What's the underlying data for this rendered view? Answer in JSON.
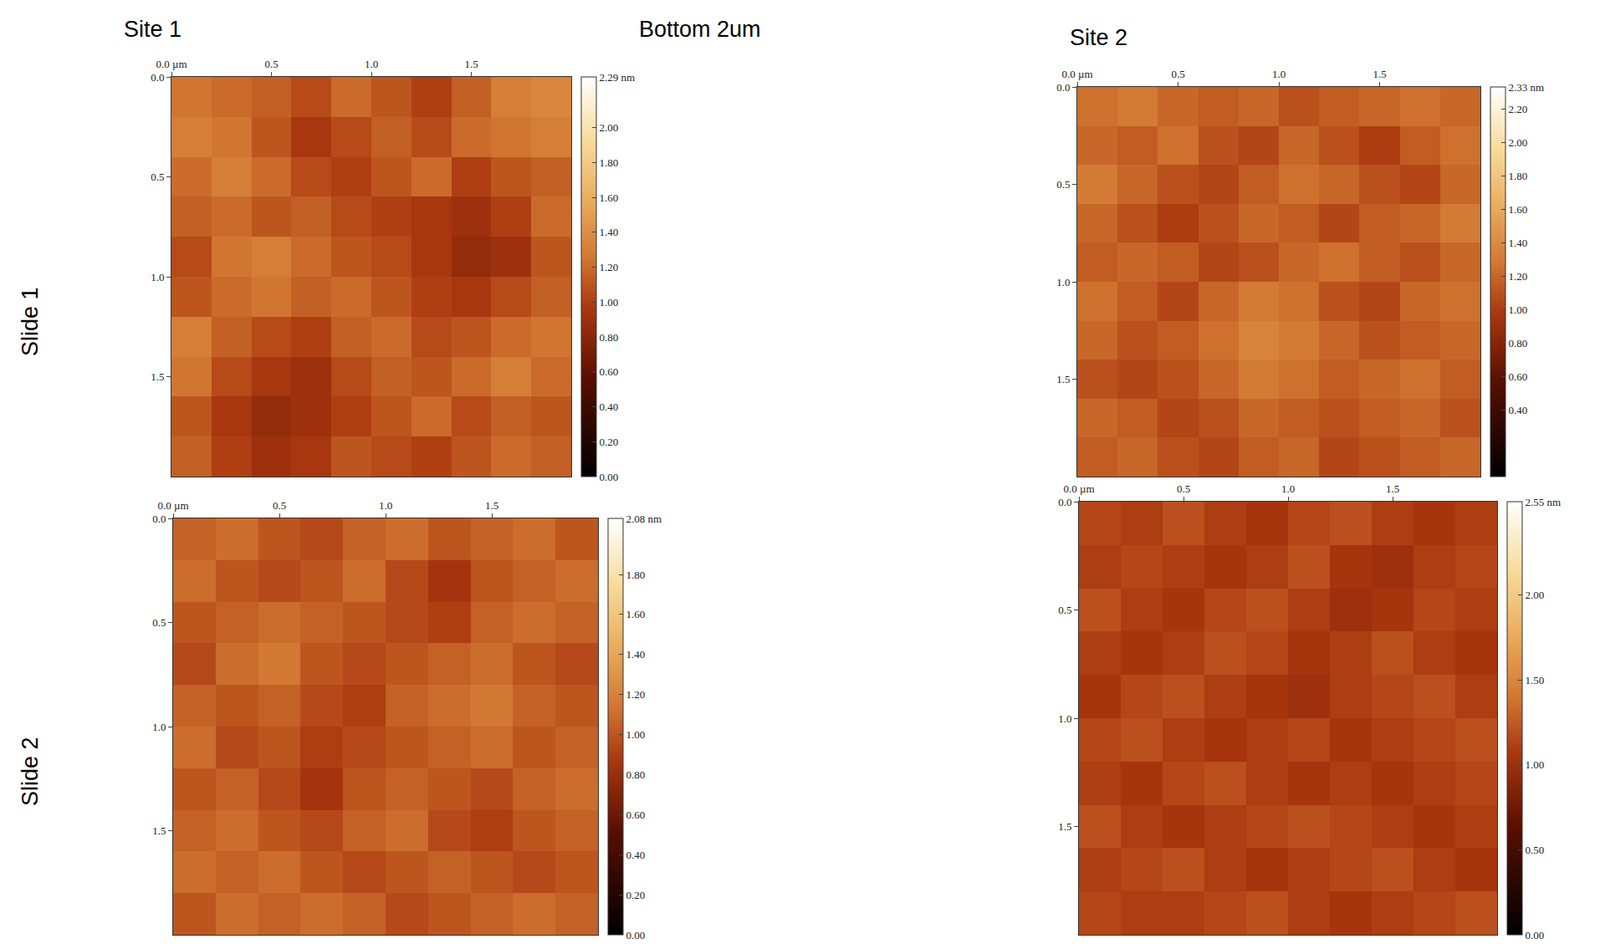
{
  "header": {
    "column_titles": [
      "Site 1",
      "Site 2"
    ],
    "row_titles": [
      "Slide 1",
      "Slide 2"
    ],
    "subtitle": "Bottom 2um"
  },
  "chart_data": [
    {
      "type": "heatmap",
      "row": "Slide 1",
      "column": "Site 1",
      "x": [
        0.1,
        0.3,
        0.5,
        0.7,
        0.9,
        1.1,
        1.3,
        1.5,
        1.7,
        1.9
      ],
      "y": [
        0.1,
        0.3,
        0.5,
        0.7,
        0.9,
        1.1,
        1.3,
        1.5,
        1.7,
        1.9
      ],
      "z": [
        [
          1.25,
          1.2,
          1.15,
          1.05,
          1.2,
          1.1,
          1.0,
          1.15,
          1.3,
          1.35
        ],
        [
          1.3,
          1.25,
          1.1,
          0.95,
          1.05,
          1.15,
          1.05,
          1.2,
          1.25,
          1.3
        ],
        [
          1.2,
          1.3,
          1.2,
          1.05,
          1.0,
          1.1,
          1.2,
          1.0,
          1.1,
          1.15
        ],
        [
          1.15,
          1.2,
          1.1,
          1.15,
          1.05,
          1.0,
          0.95,
          0.9,
          1.0,
          1.2
        ],
        [
          1.05,
          1.25,
          1.3,
          1.2,
          1.1,
          1.05,
          0.95,
          0.85,
          0.9,
          1.1
        ],
        [
          1.1,
          1.2,
          1.25,
          1.15,
          1.2,
          1.1,
          1.0,
          0.95,
          1.05,
          1.15
        ],
        [
          1.3,
          1.15,
          1.05,
          1.0,
          1.15,
          1.2,
          1.05,
          1.1,
          1.2,
          1.25
        ],
        [
          1.25,
          1.05,
          0.95,
          0.9,
          1.05,
          1.15,
          1.1,
          1.2,
          1.3,
          1.2
        ],
        [
          1.1,
          0.95,
          0.85,
          0.9,
          1.0,
          1.1,
          1.2,
          1.05,
          1.15,
          1.1
        ],
        [
          1.15,
          1.0,
          0.9,
          0.95,
          1.1,
          1.05,
          1.0,
          1.1,
          1.2,
          1.15
        ]
      ],
      "xlim": [
        0,
        2
      ],
      "ylim": [
        2,
        0
      ],
      "xticks": [
        {
          "value": 0,
          "label": "0.0 µm"
        },
        0.5,
        {
          "value": 1,
          "label": "1.0"
        },
        1.5
      ],
      "yticks": [
        {
          "value": 0,
          "label": "0.0"
        },
        0.5,
        {
          "value": 1,
          "label": "1.0"
        },
        1.5
      ],
      "zlim": [
        0,
        2.29
      ],
      "zticks": [
        {
          "value": 0,
          "label": "0.00"
        },
        {
          "value": 0.2,
          "label": "0.20"
        },
        {
          "value": 0.4,
          "label": "0.40"
        },
        {
          "value": 0.6,
          "label": "0.60"
        },
        {
          "value": 0.8,
          "label": "0.80"
        },
        {
          "value": 1,
          "label": "1.00"
        },
        {
          "value": 1.2,
          "label": "1.20"
        },
        {
          "value": 1.4,
          "label": "1.40"
        },
        {
          "value": 1.6,
          "label": "1.60"
        },
        {
          "value": 1.8,
          "label": "1.80"
        },
        {
          "value": 2,
          "label": "2.00"
        },
        {
          "value": 2.29,
          "label": "2.29 nm"
        }
      ]
    },
    {
      "type": "heatmap",
      "row": "Slide 1",
      "column": "Site 2",
      "x": [
        0.1,
        0.3,
        0.5,
        0.7,
        0.9,
        1.1,
        1.3,
        1.5,
        1.7,
        1.9
      ],
      "y": [
        0.1,
        0.3,
        0.5,
        0.7,
        0.9,
        1.1,
        1.3,
        1.5,
        1.7,
        1.9
      ],
      "z": [
        [
          1.25,
          1.3,
          1.2,
          1.15,
          1.2,
          1.1,
          1.15,
          1.2,
          1.25,
          1.2
        ],
        [
          1.2,
          1.15,
          1.25,
          1.1,
          1.05,
          1.2,
          1.1,
          1.0,
          1.15,
          1.25
        ],
        [
          1.3,
          1.2,
          1.1,
          1.05,
          1.15,
          1.25,
          1.2,
          1.1,
          1.05,
          1.2
        ],
        [
          1.2,
          1.1,
          1.0,
          1.1,
          1.2,
          1.15,
          1.05,
          1.15,
          1.2,
          1.3
        ],
        [
          1.15,
          1.2,
          1.15,
          1.05,
          1.1,
          1.2,
          1.25,
          1.15,
          1.1,
          1.2
        ],
        [
          1.25,
          1.15,
          1.05,
          1.2,
          1.3,
          1.25,
          1.1,
          1.05,
          1.2,
          1.25
        ],
        [
          1.2,
          1.1,
          1.15,
          1.25,
          1.35,
          1.3,
          1.2,
          1.1,
          1.15,
          1.2
        ],
        [
          1.1,
          1.05,
          1.1,
          1.2,
          1.3,
          1.25,
          1.15,
          1.2,
          1.25,
          1.15
        ],
        [
          1.2,
          1.15,
          1.05,
          1.1,
          1.2,
          1.15,
          1.1,
          1.15,
          1.2,
          1.1
        ],
        [
          1.15,
          1.2,
          1.1,
          1.05,
          1.15,
          1.2,
          1.05,
          1.1,
          1.15,
          1.2
        ]
      ],
      "xlim": [
        0,
        2
      ],
      "ylim": [
        2,
        0
      ],
      "xticks": [
        {
          "value": 0,
          "label": "0.0 µm"
        },
        0.5,
        {
          "value": 1,
          "label": "1.0"
        },
        1.5
      ],
      "yticks": [
        {
          "value": 0,
          "label": "0.0"
        },
        0.5,
        {
          "value": 1,
          "label": "1.0"
        },
        1.5
      ],
      "zlim": [
        0,
        2.33
      ],
      "zticks": [
        {
          "value": 0.4,
          "label": "0.40"
        },
        {
          "value": 0.6,
          "label": "0.60"
        },
        {
          "value": 0.8,
          "label": "0.80"
        },
        {
          "value": 1,
          "label": "1.00"
        },
        {
          "value": 1.2,
          "label": "1.20"
        },
        {
          "value": 1.4,
          "label": "1.40"
        },
        {
          "value": 1.6,
          "label": "1.60"
        },
        {
          "value": 1.8,
          "label": "1.80"
        },
        {
          "value": 2,
          "label": "2.00"
        },
        {
          "value": 2.2,
          "label": "2.20"
        },
        {
          "value": 2.33,
          "label": "2.33 nm"
        }
      ]
    },
    {
      "type": "heatmap",
      "row": "Slide 2",
      "column": "Site 1",
      "x": [
        0.1,
        0.3,
        0.5,
        0.7,
        0.9,
        1.1,
        1.3,
        1.5,
        1.7,
        1.9
      ],
      "y": [
        0.1,
        0.3,
        0.5,
        0.7,
        0.9,
        1.1,
        1.3,
        1.5,
        1.7,
        1.9
      ],
      "z": [
        [
          1.05,
          1.1,
          1.0,
          0.95,
          1.05,
          1.1,
          1.0,
          1.05,
          1.1,
          1.0
        ],
        [
          1.1,
          1.0,
          0.95,
          1.0,
          1.1,
          0.95,
          0.85,
          1.0,
          1.05,
          1.1
        ],
        [
          1.0,
          1.05,
          1.1,
          1.05,
          1.0,
          0.95,
          0.9,
          1.05,
          1.1,
          1.05
        ],
        [
          0.95,
          1.1,
          1.15,
          1.0,
          0.95,
          1.0,
          1.05,
          1.1,
          1.0,
          0.95
        ],
        [
          1.05,
          1.0,
          1.05,
          0.95,
          0.9,
          1.05,
          1.1,
          1.15,
          1.05,
          1.0
        ],
        [
          1.1,
          0.95,
          1.0,
          0.9,
          0.95,
          1.0,
          1.05,
          1.1,
          1.0,
          1.05
        ],
        [
          1.0,
          1.05,
          0.95,
          0.85,
          1.0,
          1.05,
          1.0,
          0.95,
          1.05,
          1.1
        ],
        [
          1.05,
          1.1,
          1.0,
          0.95,
          1.05,
          1.1,
          0.95,
          0.9,
          1.0,
          1.05
        ],
        [
          1.1,
          1.05,
          1.1,
          1.0,
          0.95,
          1.0,
          1.05,
          1.0,
          0.95,
          1.0
        ],
        [
          1.0,
          1.1,
          1.05,
          1.1,
          1.05,
          0.95,
          1.0,
          1.05,
          1.1,
          1.05
        ]
      ],
      "xlim": [
        0,
        2
      ],
      "ylim": [
        2,
        0
      ],
      "xticks": [
        {
          "value": 0,
          "label": "0.0 µm"
        },
        0.5,
        {
          "value": 1,
          "label": "1.0"
        },
        1.5
      ],
      "yticks": [
        {
          "value": 0,
          "label": "0.0"
        },
        0.5,
        {
          "value": 1,
          "label": "1.0"
        },
        1.5
      ],
      "zlim": [
        0,
        2.08
      ],
      "zticks": [
        {
          "value": 0,
          "label": "0.00"
        },
        {
          "value": 0.2,
          "label": "0.20"
        },
        {
          "value": 0.4,
          "label": "0.40"
        },
        {
          "value": 0.6,
          "label": "0.60"
        },
        {
          "value": 0.8,
          "label": "0.80"
        },
        {
          "value": 1,
          "label": "1.00"
        },
        {
          "value": 1.2,
          "label": "1.20"
        },
        {
          "value": 1.4,
          "label": "1.40"
        },
        {
          "value": 1.6,
          "label": "1.60"
        },
        {
          "value": 1.8,
          "label": "1.80"
        },
        {
          "value": 2.08,
          "label": "2.08 nm"
        }
      ]
    },
    {
      "type": "heatmap",
      "row": "Slide 2",
      "column": "Site 2",
      "x": [
        0.1,
        0.3,
        0.5,
        0.7,
        0.9,
        1.1,
        1.3,
        1.5,
        1.7,
        1.9
      ],
      "y": [
        0.1,
        0.3,
        0.5,
        0.7,
        0.9,
        1.1,
        1.3,
        1.5,
        1.7,
        1.9
      ],
      "z": [
        [
          1.15,
          1.1,
          1.2,
          1.1,
          1.05,
          1.15,
          1.2,
          1.1,
          1.05,
          1.1
        ],
        [
          1.1,
          1.15,
          1.1,
          1.05,
          1.1,
          1.2,
          1.05,
          1.0,
          1.1,
          1.15
        ],
        [
          1.2,
          1.1,
          1.05,
          1.15,
          1.2,
          1.1,
          1.0,
          1.05,
          1.15,
          1.1
        ],
        [
          1.1,
          1.05,
          1.1,
          1.2,
          1.15,
          1.05,
          1.1,
          1.2,
          1.1,
          1.05
        ],
        [
          1.05,
          1.15,
          1.2,
          1.1,
          1.05,
          1.0,
          1.1,
          1.15,
          1.2,
          1.1
        ],
        [
          1.15,
          1.2,
          1.1,
          1.05,
          1.1,
          1.15,
          1.05,
          1.1,
          1.15,
          1.2
        ],
        [
          1.1,
          1.05,
          1.15,
          1.2,
          1.1,
          1.05,
          1.1,
          1.05,
          1.1,
          1.15
        ],
        [
          1.2,
          1.1,
          1.05,
          1.1,
          1.15,
          1.2,
          1.15,
          1.1,
          1.05,
          1.1
        ],
        [
          1.1,
          1.15,
          1.2,
          1.1,
          1.05,
          1.1,
          1.15,
          1.2,
          1.1,
          1.05
        ],
        [
          1.15,
          1.1,
          1.1,
          1.15,
          1.2,
          1.1,
          1.05,
          1.1,
          1.15,
          1.2
        ]
      ],
      "xlim": [
        0,
        2
      ],
      "ylim": [
        2,
        0
      ],
      "xticks": [
        {
          "value": 0,
          "label": "0.0 µm"
        },
        0.5,
        {
          "value": 1,
          "label": "1.0"
        },
        1.5
      ],
      "yticks": [
        {
          "value": 0,
          "label": "0.0"
        },
        0.5,
        {
          "value": 1,
          "label": "1.0"
        },
        1.5
      ],
      "zlim": [
        0,
        2.55
      ],
      "zticks": [
        {
          "value": 0,
          "label": "0.00"
        },
        {
          "value": 0.5,
          "label": "0.50"
        },
        {
          "value": 1,
          "label": "1.00"
        },
        {
          "value": 1.5,
          "label": "1.50"
        },
        {
          "value": 2,
          "label": "2.00"
        },
        {
          "value": 2.55,
          "label": "2.55 nm"
        }
      ]
    }
  ]
}
